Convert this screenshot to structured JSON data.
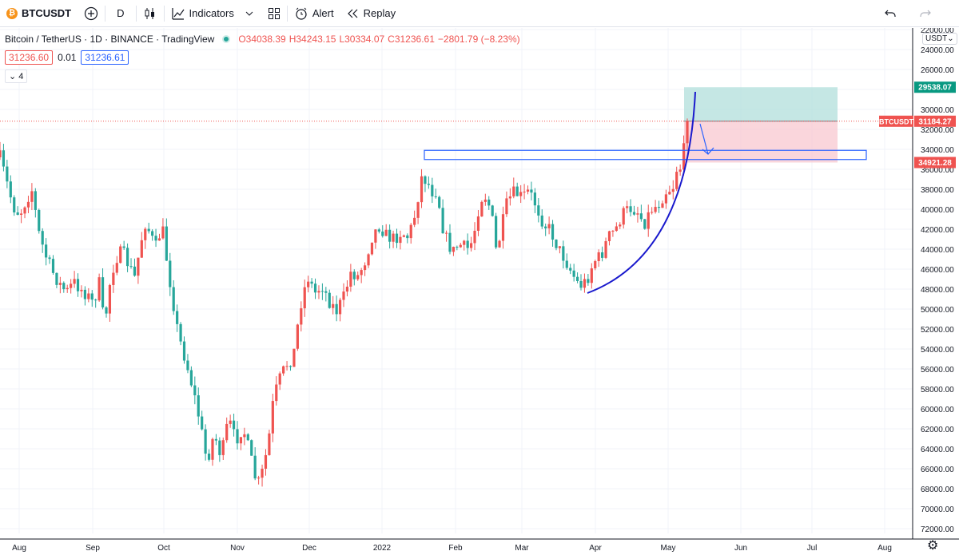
{
  "toolbar": {
    "symbol": "BTCUSDT",
    "coin_glyph": "₿",
    "interval": "D",
    "indicators_label": "Indicators",
    "alert_label": "Alert",
    "replay_label": "Replay",
    "icons": [
      "add-symbol-icon",
      "candles-icon",
      "indicators-icon",
      "chevron-down-icon",
      "layout-icon",
      "alert-icon",
      "replay-icon",
      "undo-icon",
      "redo-icon"
    ]
  },
  "legend": {
    "title": "Bitcoin / TetherUS · 1D · BINANCE · TradingView",
    "open": "O34038.39",
    "high": "H34243.15",
    "low": "L30334.07",
    "close": "C31236.61",
    "change": "−2801.79 (−8.23%)",
    "bid": "31236.60",
    "spread": "0.01",
    "ask": "31236.61",
    "collapse_count": "4"
  },
  "currency_label": "USDT",
  "chart_data": {
    "type": "candlestick",
    "y_axis": {
      "min": 22000,
      "max": 72000,
      "inverted": true,
      "ticks": [
        22000,
        24000,
        26000,
        28000,
        30000,
        32000,
        34000,
        36000,
        38000,
        40000,
        42000,
        44000,
        46000,
        48000,
        50000,
        52000,
        54000,
        56000,
        58000,
        60000,
        62000,
        64000,
        66000,
        68000,
        70000,
        72000
      ],
      "tick_labels": [
        "22000.00",
        "24000.00",
        "26000.00",
        "28000.00",
        "30000.00",
        "32000.00",
        "34000.00",
        "36000.00",
        "38000.00",
        "40000.00",
        "42000.00",
        "44000.00",
        "46000.00",
        "48000.00",
        "50000.00",
        "52000.00",
        "54000.00",
        "56000.00",
        "58000.00",
        "60000.00",
        "62000.00",
        "64000.00",
        "66000.00",
        "68000.00",
        "70000.00",
        "72000.00"
      ]
    },
    "x_axis": {
      "labels": [
        "Aug",
        "Sep",
        "Oct",
        "Nov",
        "Dec",
        "2022",
        "Feb",
        "Mar",
        "Apr",
        "May",
        "Jun",
        "Jul",
        "Aug"
      ]
    },
    "price_tags": [
      {
        "label": "",
        "value": "29538.07",
        "color": "#089981"
      },
      {
        "label": "BTCUSDT",
        "value": "31184.27",
        "color": "#ef5350"
      },
      {
        "label": "",
        "value": "34921.28",
        "color": "#ef5350"
      }
    ],
    "last_price": 31184.27,
    "position": {
      "entry": 31184.27,
      "target": 29538.07,
      "stop": 34921.28
    },
    "resistance_zone": {
      "top": 34100,
      "bottom": 34700
    },
    "colors": {
      "up": "#ef5350",
      "down": "#26a69a",
      "curve": "#1a1acd",
      "zone": "#2962ff",
      "profit": "#b2dfdb",
      "loss": "#f8c8d0",
      "grid": "#f0f3fa"
    },
    "path": [
      [
        0,
        34800
      ],
      [
        0.008,
        37500
      ],
      [
        0.015,
        39800
      ],
      [
        0.022,
        40500
      ],
      [
        0.03,
        38900
      ],
      [
        0.036,
        38000
      ],
      [
        0.042,
        42000
      ],
      [
        0.05,
        44500
      ],
      [
        0.058,
        46200
      ],
      [
        0.066,
        47500
      ],
      [
        0.074,
        48300
      ],
      [
        0.082,
        47300
      ],
      [
        0.09,
        48000
      ],
      [
        0.097,
        48600
      ],
      [
        0.104,
        49500
      ],
      [
        0.11,
        47200
      ],
      [
        0.116,
        51800
      ],
      [
        0.122,
        47500
      ],
      [
        0.128,
        45000
      ],
      [
        0.136,
        44200
      ],
      [
        0.144,
        45800
      ],
      [
        0.15,
        46900
      ],
      [
        0.156,
        43500
      ],
      [
        0.162,
        41200
      ],
      [
        0.168,
        42800
      ],
      [
        0.174,
        43900
      ],
      [
        0.18,
        41500
      ],
      [
        0.186,
        45500
      ],
      [
        0.192,
        49000
      ],
      [
        0.198,
        52500
      ],
      [
        0.206,
        55000
      ],
      [
        0.214,
        57800
      ],
      [
        0.222,
        61200
      ],
      [
        0.23,
        65300
      ],
      [
        0.238,
        62500
      ],
      [
        0.246,
        64800
      ],
      [
        0.254,
        61000
      ],
      [
        0.262,
        63200
      ],
      [
        0.27,
        61800
      ],
      [
        0.278,
        64600
      ],
      [
        0.286,
        67800
      ],
      [
        0.292,
        66200
      ],
      [
        0.298,
        63600
      ],
      [
        0.304,
        59000
      ],
      [
        0.31,
        57200
      ],
      [
        0.318,
        55600
      ],
      [
        0.326,
        54800
      ],
      [
        0.334,
        49600
      ],
      [
        0.342,
        46700
      ],
      [
        0.35,
        48400
      ],
      [
        0.358,
        47600
      ],
      [
        0.366,
        49200
      ],
      [
        0.374,
        50200
      ],
      [
        0.382,
        48800
      ],
      [
        0.39,
        46300
      ],
      [
        0.398,
        46700
      ],
      [
        0.406,
        45100
      ],
      [
        0.414,
        42600
      ],
      [
        0.422,
        41600
      ],
      [
        0.43,
        42700
      ],
      [
        0.438,
        43000
      ],
      [
        0.446,
        42300
      ],
      [
        0.454,
        42800
      ],
      [
        0.462,
        40300
      ],
      [
        0.468,
        36800
      ],
      [
        0.474,
        37100
      ],
      [
        0.48,
        38200
      ],
      [
        0.486,
        38200
      ],
      [
        0.492,
        41700
      ],
      [
        0.498,
        43500
      ],
      [
        0.504,
        44200
      ],
      [
        0.51,
        43500
      ],
      [
        0.516,
        43800
      ],
      [
        0.522,
        44000
      ],
      [
        0.528,
        41900
      ],
      [
        0.534,
        38900
      ],
      [
        0.54,
        38700
      ],
      [
        0.546,
        40200
      ],
      [
        0.552,
        44500
      ],
      [
        0.558,
        41700
      ],
      [
        0.564,
        39200
      ],
      [
        0.572,
        38300
      ],
      [
        0.58,
        38800
      ],
      [
        0.588,
        38200
      ],
      [
        0.596,
        39600
      ],
      [
        0.604,
        41400
      ],
      [
        0.612,
        42100
      ],
      [
        0.62,
        43800
      ],
      [
        0.628,
        45000
      ],
      [
        0.636,
        46400
      ],
      [
        0.644,
        47700
      ],
      [
        0.652,
        47200
      ],
      [
        0.66,
        45200
      ],
      [
        0.668,
        44700
      ],
      [
        0.676,
        42800
      ],
      [
        0.684,
        42100
      ],
      [
        0.692,
        40500
      ],
      [
        0.7,
        39900
      ],
      [
        0.708,
        40100
      ],
      [
        0.716,
        41400
      ],
      [
        0.724,
        40000
      ],
      [
        0.732,
        39500
      ],
      [
        0.74,
        38200
      ],
      [
        0.748,
        37800
      ],
      [
        0.752,
        36000
      ],
      [
        0.756,
        35900
      ],
      [
        0.76,
        34100
      ],
      [
        0.764,
        31200
      ]
    ]
  }
}
